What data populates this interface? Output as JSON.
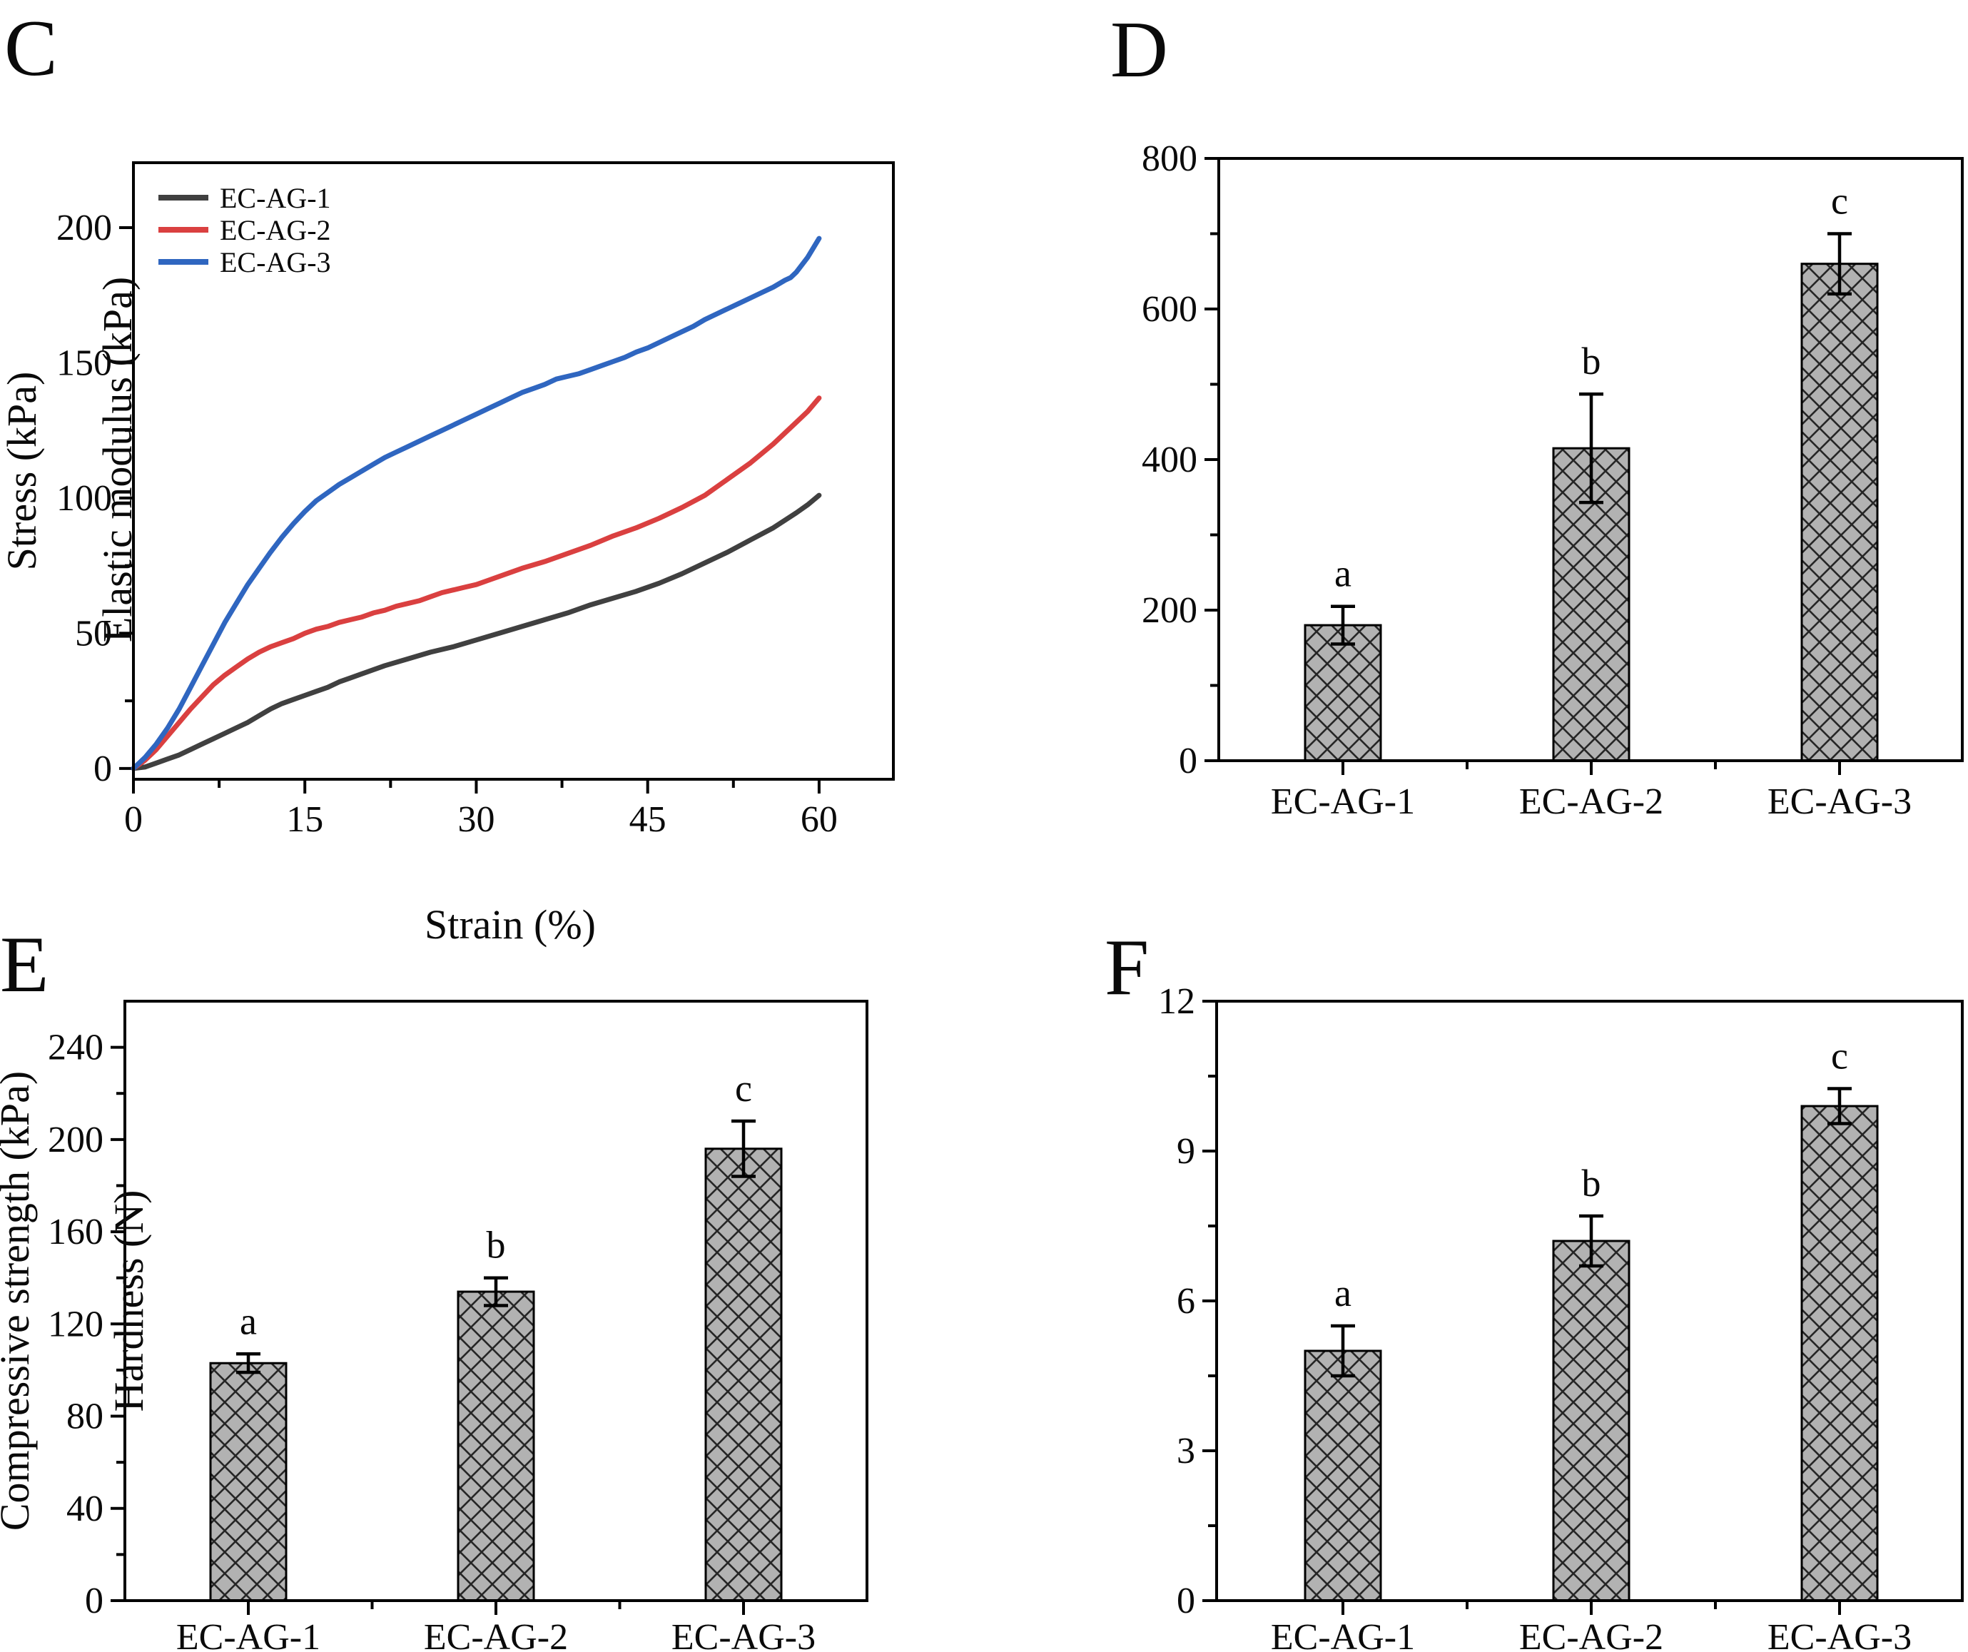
{
  "figure_caption_letters": [
    "C",
    "D",
    "E",
    "F"
  ],
  "sample_names": [
    "EC-AG-1",
    "EC-AG-2",
    "EC-AG-3"
  ],
  "colors": {
    "series_ec_ag_1": "#404040",
    "series_ec_ag_2": "#da4040",
    "series_ec_ag_3": "#2f66c0",
    "bar_fill": "#b2b2b2",
    "bar_hatch": "#262626",
    "axis": "#000000"
  },
  "chart_data": [
    {
      "panel_label": "C",
      "type": "line",
      "title": "",
      "xlabel": "Strain (%)",
      "ylabel": "Stress (kPa)",
      "xlim": [
        0,
        66.5
      ],
      "ylim": [
        -4,
        224
      ],
      "xticks": [
        0,
        15,
        30,
        45,
        60
      ],
      "yticks": [
        0,
        50,
        100,
        150,
        200
      ],
      "xminor": [
        7.5,
        22.5,
        37.5,
        52.5
      ],
      "yminor": [
        25,
        75,
        125,
        175
      ],
      "grid": false,
      "legend_position": "top-left",
      "series": [
        {
          "name": "EC-AG-1",
          "color": "#404040",
          "points": [
            [
              0,
              0
            ],
            [
              1,
              0.5
            ],
            [
              2,
              2
            ],
            [
              3,
              3.5
            ],
            [
              4,
              5
            ],
            [
              5,
              7
            ],
            [
              6,
              9
            ],
            [
              7,
              11
            ],
            [
              8,
              13
            ],
            [
              9,
              15
            ],
            [
              10,
              17
            ],
            [
              11,
              19.5
            ],
            [
              12,
              22
            ],
            [
              13,
              24
            ],
            [
              14,
              25.5
            ],
            [
              15,
              27
            ],
            [
              16,
              28.5
            ],
            [
              17,
              30
            ],
            [
              18,
              32
            ],
            [
              19,
              33.5
            ],
            [
              20,
              35
            ],
            [
              22,
              38
            ],
            [
              24,
              40.5
            ],
            [
              26,
              43
            ],
            [
              28,
              45
            ],
            [
              30,
              47.5
            ],
            [
              32,
              50
            ],
            [
              34,
              52.5
            ],
            [
              36,
              55
            ],
            [
              38,
              57.5
            ],
            [
              40,
              60.5
            ],
            [
              42,
              63
            ],
            [
              44,
              65.5
            ],
            [
              45,
              67
            ],
            [
              46,
              68.5
            ],
            [
              48,
              72
            ],
            [
              50,
              76
            ],
            [
              52,
              80
            ],
            [
              54,
              84.5
            ],
            [
              56,
              89
            ],
            [
              58,
              94.5
            ],
            [
              59,
              97.5
            ],
            [
              60,
              101
            ]
          ]
        },
        {
          "name": "EC-AG-2",
          "color": "#da4040",
          "points": [
            [
              0,
              0
            ],
            [
              0.5,
              1.5
            ],
            [
              1,
              3
            ],
            [
              1.5,
              5
            ],
            [
              2,
              7
            ],
            [
              3,
              12
            ],
            [
              4,
              17
            ],
            [
              5,
              22
            ],
            [
              6,
              26.5
            ],
            [
              7,
              31
            ],
            [
              8,
              34.5
            ],
            [
              9,
              37.5
            ],
            [
              10,
              40.5
            ],
            [
              11,
              43
            ],
            [
              12,
              45
            ],
            [
              13,
              46.5
            ],
            [
              14,
              48
            ],
            [
              15,
              50
            ],
            [
              16,
              51.5
            ],
            [
              17,
              52.5
            ],
            [
              18,
              54
            ],
            [
              19,
              55
            ],
            [
              20,
              56
            ],
            [
              21,
              57.5
            ],
            [
              22,
              58.5
            ],
            [
              23,
              60
            ],
            [
              24,
              61
            ],
            [
              25,
              62
            ],
            [
              26,
              63.5
            ],
            [
              27,
              65
            ],
            [
              28,
              66
            ],
            [
              29,
              67
            ],
            [
              30,
              68
            ],
            [
              31,
              69.5
            ],
            [
              32,
              71
            ],
            [
              34,
              74
            ],
            [
              36,
              76.5
            ],
            [
              38,
              79.5
            ],
            [
              40,
              82.5
            ],
            [
              42,
              86
            ],
            [
              44,
              89
            ],
            [
              46,
              92.5
            ],
            [
              48,
              96.5
            ],
            [
              50,
              101
            ],
            [
              52,
              107
            ],
            [
              54,
              113
            ],
            [
              56,
              120
            ],
            [
              58,
              128
            ],
            [
              59,
              132
            ],
            [
              60,
              137
            ]
          ]
        },
        {
          "name": "EC-AG-3",
          "color": "#2f66c0",
          "points": [
            [
              0,
              0
            ],
            [
              0.5,
              2
            ],
            [
              1,
              4
            ],
            [
              1.5,
              6.5
            ],
            [
              2,
              9
            ],
            [
              3,
              15
            ],
            [
              4,
              22
            ],
            [
              5,
              30
            ],
            [
              6,
              38
            ],
            [
              7,
              46
            ],
            [
              8,
              54
            ],
            [
              9,
              61
            ],
            [
              10,
              68
            ],
            [
              11,
              74
            ],
            [
              12,
              80
            ],
            [
              13,
              85.5
            ],
            [
              14,
              90.5
            ],
            [
              15,
              95
            ],
            [
              16,
              99
            ],
            [
              17,
              102
            ],
            [
              18,
              105
            ],
            [
              19,
              107.5
            ],
            [
              20,
              110
            ],
            [
              21,
              112.5
            ],
            [
              22,
              115
            ],
            [
              23,
              117
            ],
            [
              24,
              119
            ],
            [
              25,
              121
            ],
            [
              26,
              123
            ],
            [
              27,
              125
            ],
            [
              28,
              127
            ],
            [
              29,
              129
            ],
            [
              30,
              131
            ],
            [
              31,
              133
            ],
            [
              32,
              135
            ],
            [
              33,
              137
            ],
            [
              34,
              139
            ],
            [
              35,
              140.5
            ],
            [
              36,
              142
            ],
            [
              37,
              144
            ],
            [
              38,
              145
            ],
            [
              39,
              146
            ],
            [
              40,
              147.5
            ],
            [
              41,
              149
            ],
            [
              42,
              150.5
            ],
            [
              43,
              152
            ],
            [
              44,
              154
            ],
            [
              45,
              155.5
            ],
            [
              46,
              157.5
            ],
            [
              47,
              159.5
            ],
            [
              48,
              161.5
            ],
            [
              49,
              163.5
            ],
            [
              50,
              166
            ],
            [
              51,
              168
            ],
            [
              52,
              170
            ],
            [
              53,
              172
            ],
            [
              54,
              174
            ],
            [
              55,
              176
            ],
            [
              56,
              178
            ],
            [
              57,
              180.5
            ],
            [
              57.5,
              181.5
            ],
            [
              58,
              183.5
            ],
            [
              59,
              189
            ],
            [
              60,
              196
            ]
          ]
        }
      ]
    },
    {
      "panel_label": "D",
      "type": "bar",
      "title": "",
      "xlabel": "",
      "ylabel": "Elastic modulus (kPa)",
      "categories": [
        "EC-AG-1",
        "EC-AG-2",
        "EC-AG-3"
      ],
      "values": [
        180,
        415,
        660
      ],
      "errors": [
        25,
        72,
        40
      ],
      "sig_letters": [
        "a",
        "b",
        "c"
      ],
      "ylim": [
        0,
        800
      ],
      "yticks": [
        0,
        200,
        400,
        600,
        800
      ],
      "yminor": [
        100,
        300,
        500,
        700
      ],
      "grid": false
    },
    {
      "panel_label": "E",
      "type": "bar",
      "title": "",
      "xlabel": "",
      "ylabel": "Compressive strength (kPa)",
      "categories": [
        "EC-AG-1",
        "EC-AG-2",
        "EC-AG-3"
      ],
      "values": [
        103,
        134,
        196
      ],
      "errors": [
        4,
        6,
        12
      ],
      "sig_letters": [
        "a",
        "b",
        "c"
      ],
      "ylim": [
        0,
        260
      ],
      "yticks": [
        0,
        40,
        80,
        120,
        160,
        200,
        240
      ],
      "yminor": [
        20,
        60,
        100,
        140,
        180,
        220
      ],
      "grid": false
    },
    {
      "panel_label": "F",
      "type": "bar",
      "title": "",
      "xlabel": "",
      "ylabel": "Hardness (N)",
      "categories": [
        "EC-AG-1",
        "EC-AG-2",
        "EC-AG-3"
      ],
      "values": [
        5.0,
        7.2,
        9.9
      ],
      "errors": [
        0.5,
        0.5,
        0.35
      ],
      "sig_letters": [
        "a",
        "b",
        "c"
      ],
      "ylim": [
        0,
        12
      ],
      "yticks": [
        0,
        3,
        6,
        9,
        12
      ],
      "yminor": [
        1.5,
        4.5,
        7.5,
        10.5
      ],
      "grid": false
    }
  ]
}
